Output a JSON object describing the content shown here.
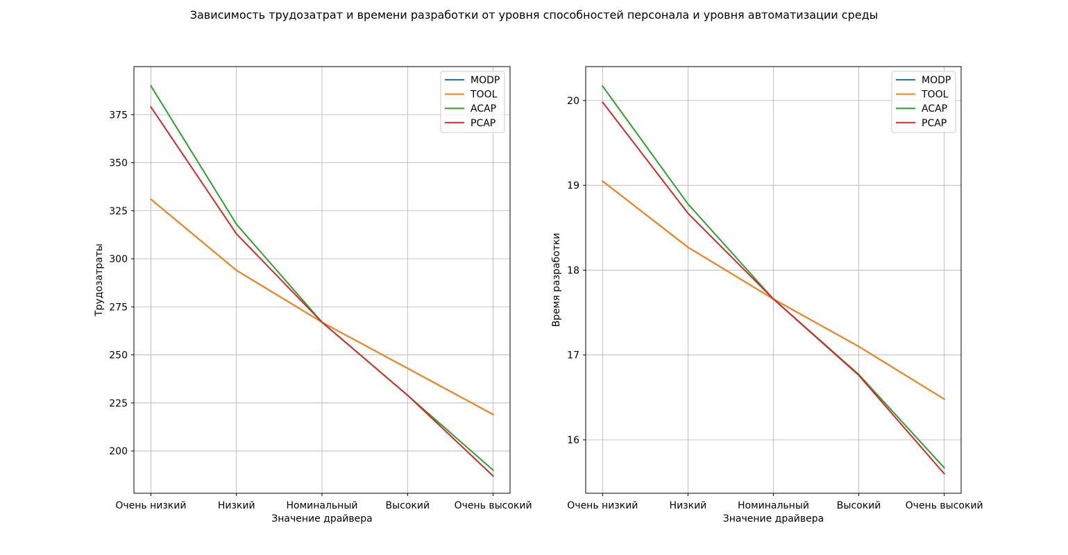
{
  "suptitle": "Зависимость трудозатрат и времени разработки от уровня способностей персонала и уровня автоматизации среды",
  "chart_data": [
    {
      "type": "line",
      "categories": [
        "Очень низкий",
        "Низкий",
        "Номинальный",
        "Высокий",
        "Очень высокий"
      ],
      "xlabel": "Значение драйвера",
      "ylabel": "Трудозатраты",
      "ylim": [
        178,
        400
      ],
      "yticks": [
        200,
        225,
        250,
        275,
        300,
        325,
        350,
        375
      ],
      "grid": true,
      "legend": "top-right",
      "series": [
        {
          "name": "MODP",
          "color": "#1f77b4",
          "values": [
            331,
            294,
            267,
            243,
            219
          ]
        },
        {
          "name": "TOOL",
          "color": "#ff7f0e",
          "values": [
            331,
            294,
            267,
            243,
            219
          ]
        },
        {
          "name": "ACAP",
          "color": "#2ca02c",
          "values": [
            390,
            318,
            267,
            229,
            190
          ]
        },
        {
          "name": "PCAP",
          "color": "#d62728",
          "values": [
            379,
            313,
            267,
            229,
            187
          ]
        }
      ]
    },
    {
      "type": "line",
      "categories": [
        "Очень низкий",
        "Низкий",
        "Номинальный",
        "Высокий",
        "Очень высокий"
      ],
      "xlabel": "Значение драйвера",
      "ylabel": "Время разработки",
      "ylim": [
        15.37,
        20.4
      ],
      "yticks": [
        16,
        17,
        18,
        19,
        20
      ],
      "grid": true,
      "legend": "top-right",
      "series": [
        {
          "name": "MODP",
          "color": "#1f77b4",
          "values": [
            19.05,
            18.27,
            17.66,
            17.1,
            16.48
          ]
        },
        {
          "name": "TOOL",
          "color": "#ff7f0e",
          "values": [
            19.05,
            18.27,
            17.66,
            17.1,
            16.48
          ]
        },
        {
          "name": "ACAP",
          "color": "#2ca02c",
          "values": [
            20.17,
            18.78,
            17.66,
            16.77,
            15.67
          ]
        },
        {
          "name": "PCAP",
          "color": "#d62728",
          "values": [
            19.98,
            18.67,
            17.66,
            16.76,
            15.6
          ]
        }
      ]
    }
  ]
}
